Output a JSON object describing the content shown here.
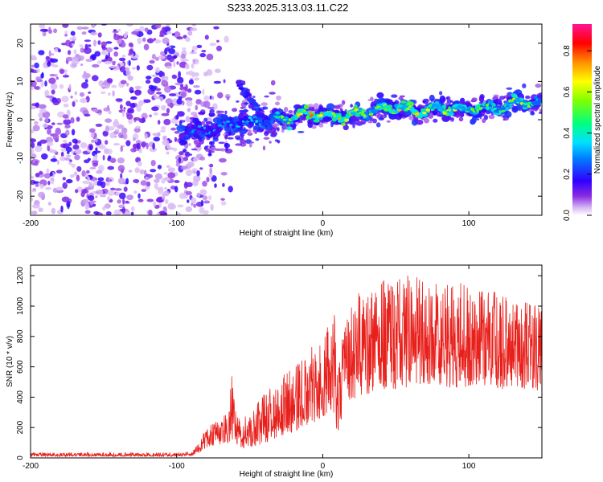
{
  "title": "S233.2025.313.03.11.C22",
  "chart_data": [
    {
      "type": "heatmap",
      "xlabel": "Height of straight line (km)",
      "ylabel": "Frequency (Hz)",
      "xlim": [
        -200,
        150
      ],
      "ylim": [
        -25,
        25
      ],
      "xticks": [
        -200,
        -100,
        0,
        100
      ],
      "xtick_labels": [
        "-200",
        "-100",
        "0",
        "100"
      ],
      "yticks": [
        -20,
        -10,
        0,
        10,
        20
      ],
      "ytick_labels": [
        "-20",
        "-10",
        "0",
        "10",
        "20"
      ],
      "ridge": {
        "x": [
          -95,
          -85,
          -75,
          -65,
          -55,
          -45,
          -35,
          -25,
          -15,
          -5,
          5,
          15,
          25,
          35,
          45,
          55,
          65,
          75,
          85,
          95,
          105,
          115,
          125,
          135,
          145
        ],
        "frequency": [
          -3.5,
          -3.0,
          -2.5,
          -1.5,
          -0.5,
          -1.0,
          0.5,
          0.0,
          1.0,
          1.5,
          1.0,
          0.5,
          1.5,
          2.5,
          3.0,
          3.0,
          2.0,
          3.0,
          3.0,
          2.5,
          3.0,
          3.0,
          3.5,
          5.0,
          4.0
        ],
        "peak_amplitude": [
          0.25,
          0.3,
          0.3,
          0.3,
          0.35,
          0.4,
          0.45,
          0.55,
          0.75,
          0.7,
          0.7,
          0.75,
          0.6,
          0.55,
          0.8,
          0.6,
          0.75,
          0.6,
          0.65,
          0.6,
          0.55,
          0.5,
          0.55,
          0.6,
          0.5
        ]
      },
      "colorbar": {
        "label": "Normalized spectral amplitude",
        "range": [
          0.0,
          0.93
        ],
        "ticks": [
          0.0,
          0.2,
          0.4,
          0.6,
          0.8
        ],
        "tick_labels": [
          "0.0",
          "0.2",
          "0.4",
          "0.6",
          "0.8"
        ],
        "colors": [
          "#ffffff",
          "#c8a0f0",
          "#6a00e0",
          "#0000ff",
          "#00c8ff",
          "#00ff80",
          "#80ff00",
          "#ffff00",
          "#ff8000",
          "#ff0000",
          "#ff0080"
        ]
      }
    },
    {
      "type": "line",
      "xlabel": "Height of straight line (km)",
      "ylabel": "SNR (10 * v/v)",
      "xlim": [
        -200,
        150
      ],
      "ylim": [
        0,
        1270
      ],
      "xticks": [
        -200,
        -100,
        0,
        100
      ],
      "xtick_labels": [
        "-200",
        "-100",
        "0",
        "100"
      ],
      "yticks": [
        0,
        200,
        400,
        600,
        800,
        1000,
        1200
      ],
      "ytick_labels": [
        "0",
        "200",
        "400",
        "600",
        "800",
        "1000",
        "1200"
      ],
      "series": [
        {
          "name": "SNR",
          "color": "#e8201c",
          "envelope_x": [
            -200,
            -150,
            -100,
            -90,
            -85,
            -80,
            -75,
            -70,
            -65,
            -62,
            -60,
            -55,
            -50,
            -45,
            -40,
            -35,
            -30,
            -25,
            -20,
            -15,
            -10,
            -5,
            0,
            5,
            8,
            10,
            12,
            15,
            20,
            25,
            30,
            35,
            40,
            45,
            50,
            55,
            60,
            65,
            70,
            80,
            90,
            100,
            110,
            120,
            130,
            140,
            150
          ],
          "envelope_low": [
            10,
            10,
            10,
            15,
            30,
            60,
            80,
            90,
            100,
            120,
            100,
            60,
            70,
            80,
            100,
            110,
            130,
            150,
            170,
            200,
            220,
            230,
            270,
            300,
            280,
            140,
            220,
            320,
            380,
            400,
            420,
            430,
            440,
            460,
            450,
            460,
            470,
            470,
            470,
            470,
            460,
            470,
            480,
            450,
            460,
            450,
            440
          ],
          "envelope_high": [
            35,
            35,
            35,
            45,
            90,
            200,
            230,
            260,
            320,
            560,
            320,
            260,
            300,
            360,
            420,
            480,
            530,
            560,
            590,
            640,
            700,
            760,
            820,
            900,
            1010,
            700,
            760,
            880,
            1000,
            1120,
            1050,
            1100,
            1150,
            1200,
            1180,
            1200,
            1250,
            1180,
            1150,
            1150,
            1150,
            1150,
            1100,
            1100,
            1080,
            1050,
            1000
          ]
        }
      ]
    }
  ]
}
